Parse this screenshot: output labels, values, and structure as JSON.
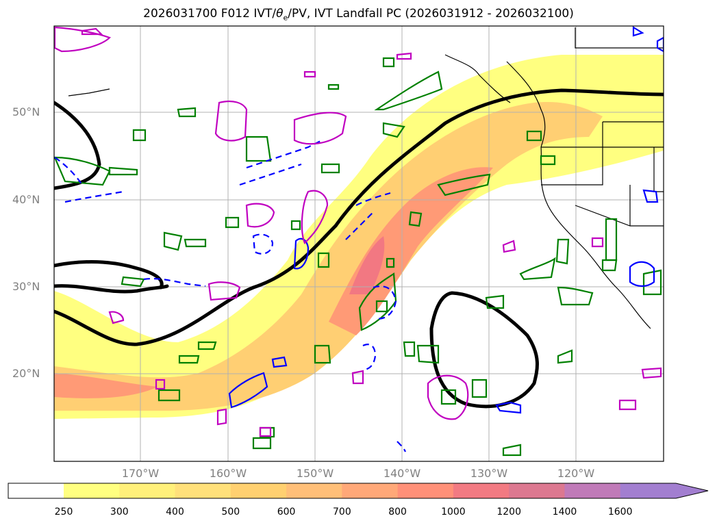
{
  "title": {
    "prefix": "2026031700 F012 IVT/",
    "theta": "θ",
    "theta_sub": "e",
    "suffix": "/PV, IVT Landfall PC (2026031912 - 2026032100)"
  },
  "axes": {
    "lat_labels": [
      "50°N",
      "40°N",
      "30°N",
      "20°N"
    ],
    "lon_labels": [
      "170°W",
      "160°W",
      "150°W",
      "140°W",
      "130°W",
      "120°W"
    ]
  },
  "colorbar": {
    "ticks": [
      "250",
      "300",
      "400",
      "500",
      "600",
      "700",
      "800",
      "1000",
      "1200",
      "1400",
      "1600"
    ],
    "colors": [
      "#ffff80",
      "#fff07a",
      "#ffe07a",
      "#ffd070",
      "#ffbf78",
      "#ffa878",
      "#ff9078",
      "#f27a82",
      "#dc7890",
      "#c07ab8",
      "#a27ed0"
    ]
  },
  "legend_colors": {
    "ivt_low": "#ffff80",
    "ivt_mid": "#ffcf73",
    "ivt_high": "#ff9a76",
    "ivt_peak": "#f27882",
    "contour_black": "#000000",
    "contour_green": "#008000",
    "contour_blue": "#0000ff",
    "contour_magenta": "#c000c0"
  }
}
